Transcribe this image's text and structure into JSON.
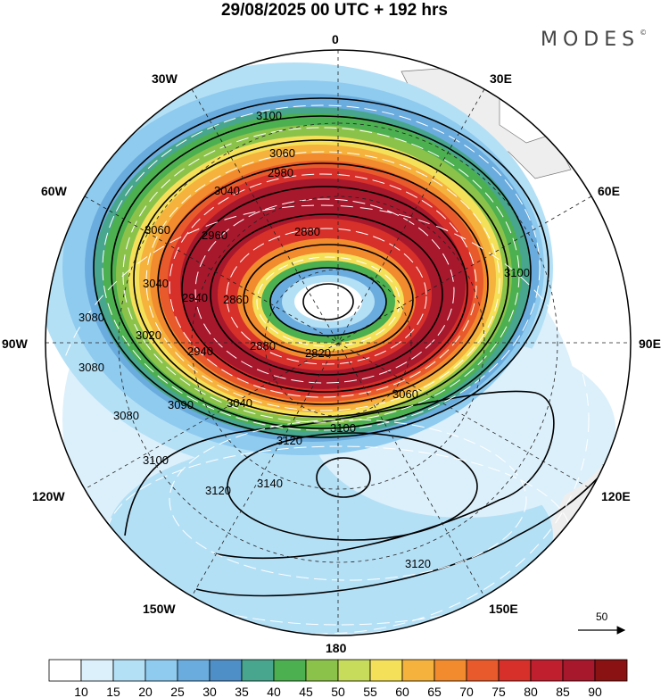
{
  "title": "29/08/2025  00 UTC  + 192 hrs",
  "brand": "MODES",
  "brand_mark": "©",
  "longitude_labels": {
    "n0": "0",
    "w30": "30W",
    "e30": "30E",
    "w60": "60W",
    "e60": "60E",
    "w90": "90W",
    "e90": "90E",
    "w120": "120W",
    "e120": "120E",
    "w150": "150W",
    "e150": "150E",
    "s180": "180"
  },
  "contour_labels": [
    "3100",
    "3060",
    "3040",
    "2980",
    "3060",
    "2960",
    "2880",
    "3040",
    "2940",
    "2860",
    "3080",
    "3020",
    "2820",
    "2940",
    "2880",
    "3060",
    "3080",
    "3040",
    "3090",
    "3100",
    "3080",
    "3120",
    "3100",
    "3140",
    "3120",
    "3120",
    "3100"
  ],
  "reference_vector": {
    "label": "50"
  },
  "colorbar": {
    "levels": [
      "10",
      "15",
      "20",
      "25",
      "30",
      "35",
      "40",
      "45",
      "50",
      "55",
      "60",
      "65",
      "70",
      "75",
      "80",
      "85",
      "90"
    ],
    "colors": [
      "#ffffff",
      "#dcf0fb",
      "#b4e0f6",
      "#8fcbef",
      "#6aacde",
      "#4f8fc8",
      "#48a68e",
      "#4caf50",
      "#8bc34a",
      "#c6dc5a",
      "#f5e05a",
      "#f5b23c",
      "#f28a2e",
      "#e85a2b",
      "#d7302a",
      "#c01f2e",
      "#a8182c",
      "#8b1212"
    ]
  },
  "colors": {
    "background": "#ffffff",
    "land": "#eeeeee",
    "contour": "#000000",
    "vectors": "#ffffff"
  }
}
